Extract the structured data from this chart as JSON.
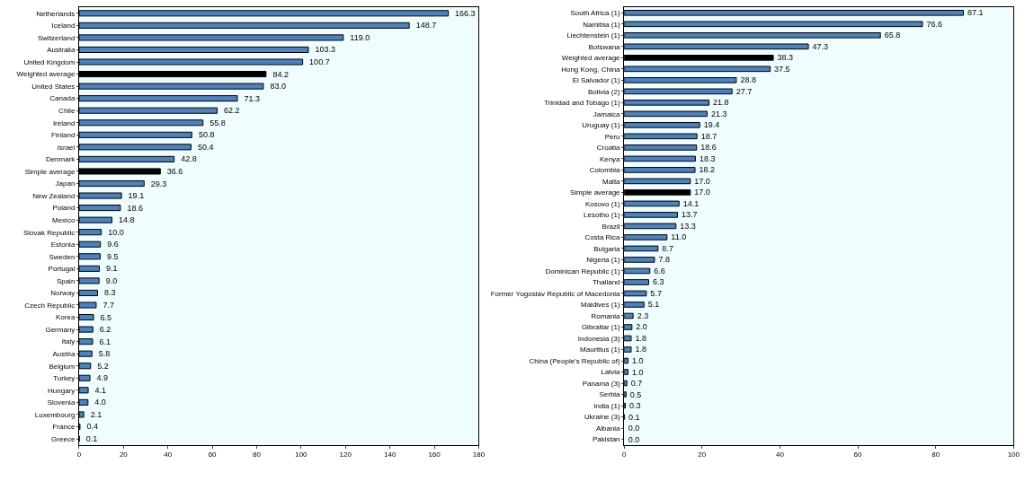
{
  "chart_data": [
    {
      "type": "bar",
      "orientation": "horizontal",
      "xlim": [
        0,
        180
      ],
      "xticks": [
        0,
        20,
        40,
        60,
        80,
        100,
        120,
        140,
        160,
        180
      ],
      "categories": [
        "Netherlands",
        "Iceland",
        "Switzerland",
        "Australia",
        "United Kingdom",
        "Weighted average",
        "United States",
        "Canada",
        "Chile",
        "Ireland",
        "Finland",
        "Israel",
        "Denmark",
        "Simple average",
        "Japan",
        "New Zealand",
        "Poland",
        "Mexico",
        "Slovak Republic",
        "Estonia",
        "Sweden",
        "Portugal",
        "Spain",
        "Norway",
        "Czech Republic",
        "Korea",
        "Germany",
        "Italy",
        "Austria",
        "Belgium",
        "Turkey",
        "Hungary",
        "Slovenia",
        "Luxembourg",
        "France",
        "Greece"
      ],
      "values": [
        166.3,
        148.7,
        119.0,
        103.3,
        100.7,
        84.2,
        83.0,
        71.3,
        62.2,
        55.8,
        50.8,
        50.4,
        42.8,
        36.6,
        29.3,
        19.1,
        18.6,
        14.8,
        10.0,
        9.6,
        9.5,
        9.1,
        9.0,
        8.3,
        7.7,
        6.5,
        6.2,
        6.1,
        5.8,
        5.2,
        4.9,
        4.1,
        4.0,
        2.1,
        0.4,
        0.1
      ],
      "value_labels": [
        "166.3",
        "148.7",
        "119.0",
        "103.3",
        "100.7",
        "84.2",
        "83.0",
        "71.3",
        "62.2",
        "55.8",
        "50.8",
        "50.4",
        "42.8",
        "36.6",
        "29.3",
        "19.1",
        "18.6",
        "14.8",
        "10.0",
        "9.6",
        "9.5",
        "9.1",
        "9.0",
        "8.3",
        "7.7",
        "6.5",
        "6.2",
        "6.1",
        "5.8",
        "5.2",
        "4.9",
        "4.1",
        "4.0",
        "2.1",
        "0.4",
        "0.1"
      ],
      "colors": [
        "#4f81bd",
        "#4f81bd",
        "#4f81bd",
        "#4f81bd",
        "#4f81bd",
        "#000000",
        "#4f81bd",
        "#4f81bd",
        "#4f81bd",
        "#4f81bd",
        "#4f81bd",
        "#4f81bd",
        "#4f81bd",
        "#000000",
        "#4f81bd",
        "#4f81bd",
        "#4f81bd",
        "#4f81bd",
        "#4f81bd",
        "#4f81bd",
        "#4f81bd",
        "#4f81bd",
        "#4f81bd",
        "#4f81bd",
        "#4f81bd",
        "#4f81bd",
        "#4f81bd",
        "#4f81bd",
        "#4f81bd",
        "#4f81bd",
        "#4f81bd",
        "#4f81bd",
        "#4f81bd",
        "#4f81bd",
        "#4f81bd",
        "#4f81bd"
      ]
    },
    {
      "type": "bar",
      "orientation": "horizontal",
      "xlim": [
        0,
        100
      ],
      "xticks": [
        0,
        20,
        40,
        60,
        80,
        100
      ],
      "categories": [
        "South Africa (1)",
        "Namibia (1)",
        "Liechtenstein (1)",
        "Botswana",
        "Weighted average",
        "Hong Kong, China",
        "El Salvador (1)",
        "Bolivia (2)",
        "Trinidad and Tobago (1)",
        "Jamaica",
        "Uruguay (1)",
        "Peru",
        "Croatia",
        "Kenya",
        "Colombia",
        "Malta",
        "Simple average",
        "Kosovo (1)",
        "Lesotho (1)",
        "Brazil",
        "Costa Rica",
        "Bulgaria",
        "Nigeria (1)",
        "Dominican Republic (1)",
        "Thailand",
        "Former Yugoslav Republic of Macedonia",
        "Maldives (1)",
        "Romania",
        "Gibraltar (1)",
        "Indonesia (3)",
        "Mauritius (1)",
        "China (People's Republic of)",
        "Latvia",
        "Panama (3)",
        "Serbia",
        "India (1)",
        "Ukraine (3)",
        "Albania",
        "Pakistan"
      ],
      "values": [
        87.1,
        76.6,
        65.8,
        47.3,
        38.3,
        37.5,
        28.8,
        27.7,
        21.8,
        21.3,
        19.4,
        18.7,
        18.6,
        18.3,
        18.2,
        17.0,
        17.0,
        14.1,
        13.7,
        13.3,
        11.0,
        8.7,
        7.8,
        6.6,
        6.3,
        5.7,
        5.1,
        2.3,
        2.0,
        1.8,
        1.8,
        1.0,
        1.0,
        0.7,
        0.5,
        0.3,
        0.1,
        0.0,
        0.0
      ],
      "value_labels": [
        "87.1",
        "76.6",
        "65.8",
        "47.3",
        "38.3",
        "37.5",
        "28.8",
        "27.7",
        "21.8",
        "21.3",
        "19.4",
        "18.7",
        "18.6",
        "18.3",
        "18.2",
        "17.0",
        "17.0",
        "14.1",
        "13.7",
        "13.3",
        "11.0",
        "8.7",
        "7.8",
        "6.6",
        "6.3",
        "5.7",
        "5.1",
        "2.3",
        "2.0",
        "1.8",
        "1.8",
        "1.0",
        "1.0",
        "0.7",
        "0.5",
        "0.3",
        "0.1",
        "0.0",
        "0.0"
      ],
      "colors": [
        "#4f81bd",
        "#4f81bd",
        "#4f81bd",
        "#4f81bd",
        "#000000",
        "#4f81bd",
        "#4f81bd",
        "#4f81bd",
        "#4f81bd",
        "#4f81bd",
        "#4f81bd",
        "#4f81bd",
        "#4f81bd",
        "#4f81bd",
        "#4f81bd",
        "#4f81bd",
        "#000000",
        "#4f81bd",
        "#4f81bd",
        "#4f81bd",
        "#4f81bd",
        "#4f81bd",
        "#4f81bd",
        "#4f81bd",
        "#4f81bd",
        "#4f81bd",
        "#4f81bd",
        "#4f81bd",
        "#4f81bd",
        "#4f81bd",
        "#4f81bd",
        "#4f81bd",
        "#4f81bd",
        "#4f81bd",
        "#4f81bd",
        "#4f81bd",
        "#4f81bd",
        "#4f81bd",
        "#4f81bd"
      ]
    }
  ]
}
